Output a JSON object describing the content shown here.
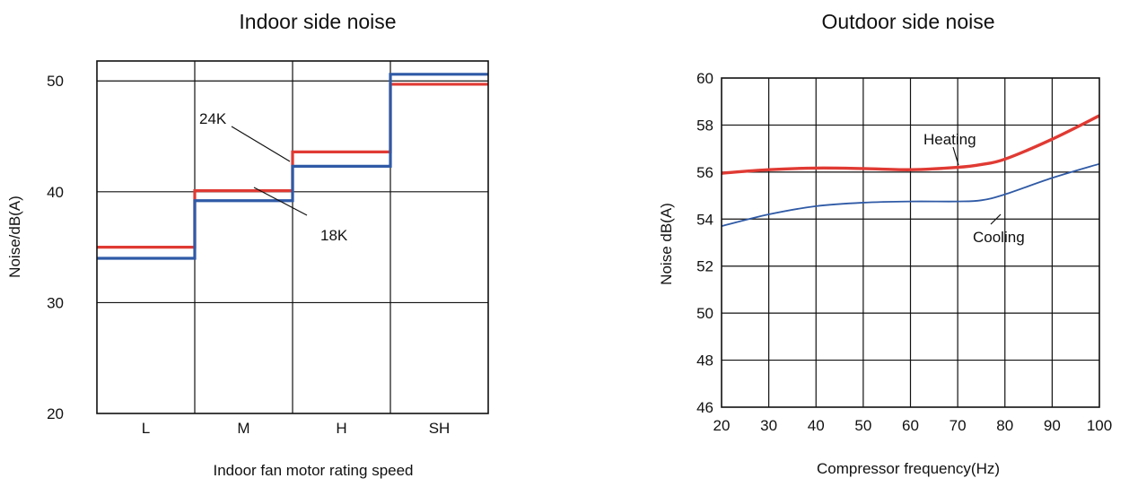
{
  "chart_data": [
    {
      "type": "line",
      "subtype": "step",
      "title": "Indoor side noise",
      "xlabel": "Indoor fan motor rating speed",
      "ylabel": "Noise/dB(A)",
      "categories": [
        "L",
        "M",
        "H",
        "SH"
      ],
      "ylim": [
        20,
        51.8
      ],
      "yticks": [
        20,
        30,
        40,
        50
      ],
      "grid": true,
      "series": [
        {
          "name": "24K",
          "color": "#e03a33",
          "values": [
            35,
            40.1,
            43.6,
            49.7
          ]
        },
        {
          "name": "18K",
          "color": "#2f5aa6",
          "values": [
            34,
            39.2,
            42.3,
            50.6
          ]
        }
      ]
    },
    {
      "type": "line",
      "title": "Outdoor side noise",
      "xlabel": "Compressor frequency(Hz)",
      "ylabel": "Noise dB(A)",
      "xlim": [
        20,
        100
      ],
      "ylim": [
        46,
        60
      ],
      "xticks": [
        20,
        30,
        40,
        50,
        60,
        70,
        80,
        90,
        100
      ],
      "yticks": [
        46,
        48,
        50,
        52,
        54,
        56,
        58,
        60
      ],
      "grid": true,
      "series": [
        {
          "name": "Heating",
          "color": "#e03a33",
          "x": [
            20,
            30,
            40,
            50,
            60,
            70,
            75,
            80,
            90,
            100
          ],
          "y": [
            55.95,
            56.1,
            56.17,
            56.15,
            56.1,
            56.2,
            56.32,
            56.55,
            57.4,
            58.4
          ]
        },
        {
          "name": "Cooling",
          "color": "#2f5aa6",
          "x": [
            20,
            30,
            40,
            50,
            60,
            70,
            75,
            80,
            90,
            100
          ],
          "y": [
            53.7,
            54.2,
            54.55,
            54.7,
            54.75,
            54.75,
            54.8,
            55.05,
            55.75,
            56.35
          ]
        }
      ]
    }
  ]
}
